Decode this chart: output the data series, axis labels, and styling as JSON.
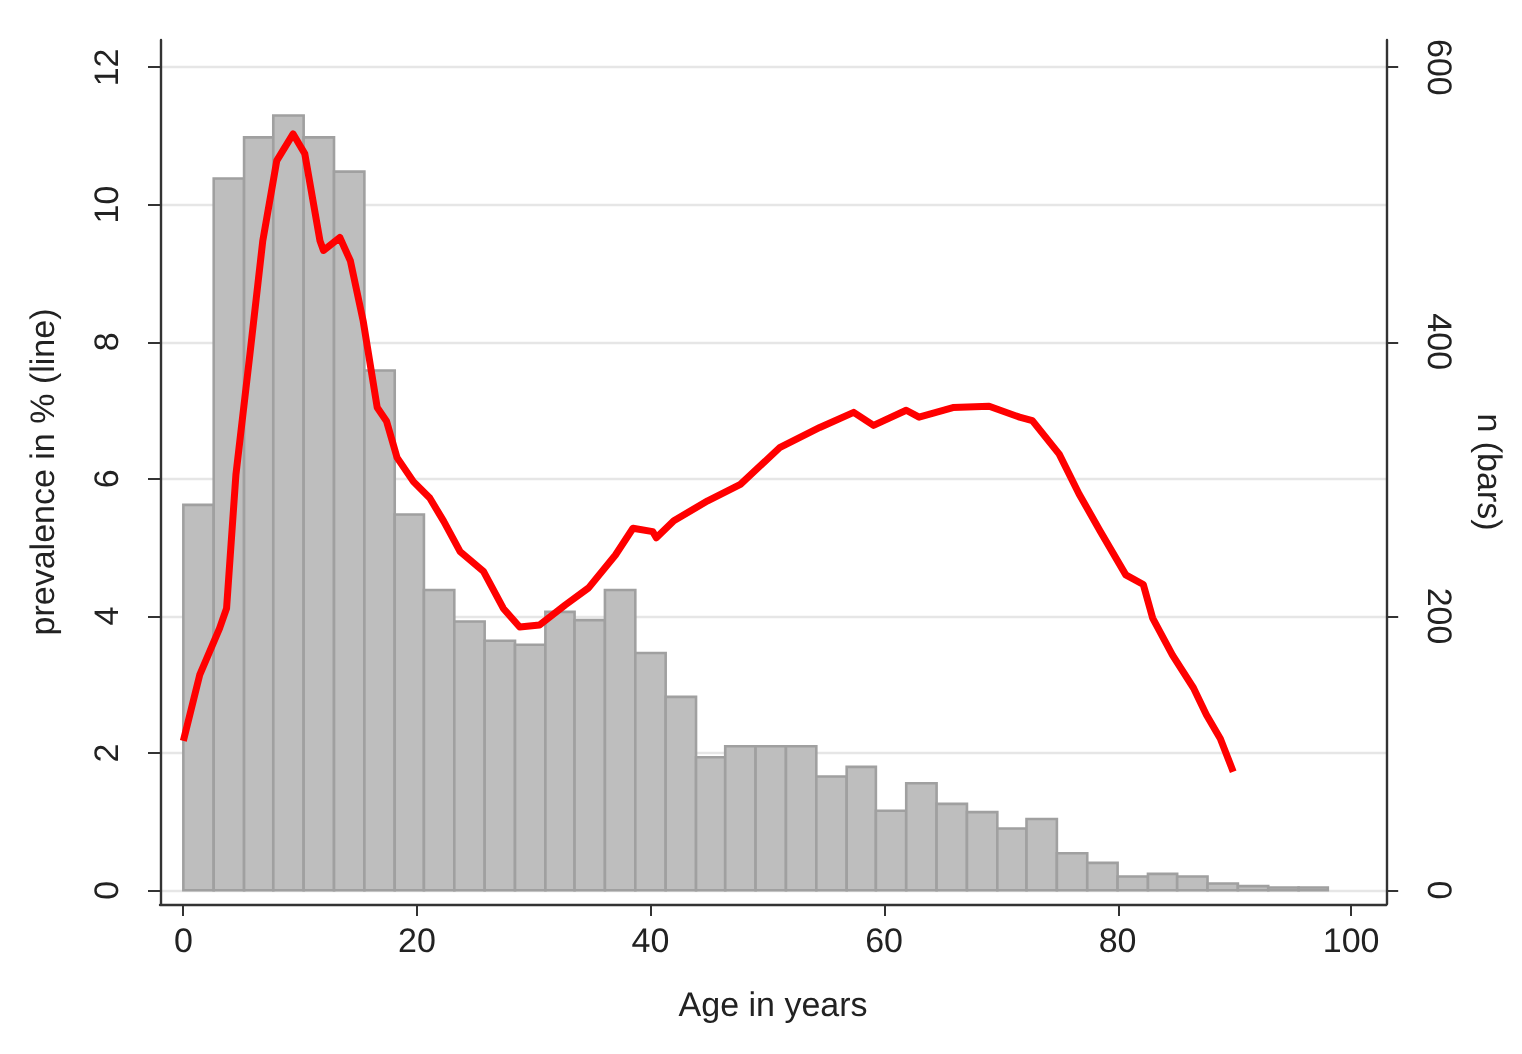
{
  "chart_data": {
    "type": "histogram",
    "xlabel": "Age in years",
    "ylabel": "prevalence in % (line)",
    "y2label": "n (bars)",
    "bins": [
      0,
      2.6,
      5.2,
      7.7,
      10.3,
      12.9,
      15.5,
      18.1,
      20.6,
      23.2,
      25.8,
      28.4,
      31.0,
      33.5,
      36.1,
      38.7,
      41.3,
      43.9,
      46.4,
      49.0,
      51.6,
      54.2,
      56.8,
      59.3,
      61.9,
      64.5,
      67.1,
      69.7,
      72.2,
      74.8,
      77.4,
      80.0,
      82.6,
      85.1,
      87.7,
      90.3,
      92.9,
      95.5,
      98.0
    ],
    "series": [
      {
        "axis": "y2",
        "color": "#bebebe",
        "values": [
          281,
          519,
          549,
          565,
          549,
          524,
          379,
          274,
          219,
          196,
          182,
          179,
          203,
          197,
          219,
          173,
          141,
          97,
          105,
          105,
          105,
          83,
          90,
          58,
          78,
          63,
          57,
          45,
          52,
          27,
          20,
          10,
          12,
          10,
          5,
          3,
          2,
          2
        ]
      },
      {
        "type": "line",
        "color": "#ff0000",
        "x": [
          0,
          1.4,
          3.1,
          3.7,
          4.5,
          5.7,
          6.8,
          8.0,
          9.4,
          10.4,
          11.7,
          12.0,
          13.4,
          14.3,
          15.4,
          16.6,
          17.4,
          18.3,
          19.7,
          21.1,
          22.3,
          23.7,
          25.7,
          27.4,
          28.8,
          30.5,
          32.7,
          34.7,
          37.0,
          38.5,
          40.2,
          40.5,
          42.0,
          44.9,
          47.7,
          51.1,
          54.5,
          57.4,
          59.1,
          61.9,
          63.0,
          65.9,
          69.0,
          71.6,
          72.7,
          75.0,
          76.7,
          78.5,
          80.7,
          82.2,
          83.0,
          84.7,
          86.5,
          87.6,
          88.8,
          89.9
        ],
        "values": [
          2.18,
          3.14,
          3.82,
          4.11,
          6.06,
          7.82,
          9.47,
          10.64,
          11.03,
          10.74,
          9.47,
          9.33,
          9.52,
          9.18,
          8.3,
          7.04,
          6.84,
          6.31,
          5.96,
          5.72,
          5.38,
          4.94,
          4.65,
          4.11,
          3.84,
          3.87,
          4.16,
          4.41,
          4.89,
          5.28,
          5.23,
          5.14,
          5.39,
          5.68,
          5.92,
          6.46,
          6.75,
          6.97,
          6.78,
          7.0,
          6.9,
          7.04,
          7.06,
          6.9,
          6.85,
          6.36,
          5.78,
          5.24,
          4.6,
          4.46,
          3.97,
          3.43,
          2.95,
          2.56,
          2.21,
          1.73
        ]
      }
    ],
    "xlim": [
      -2,
      103
    ],
    "xticks": [
      0,
      20,
      40,
      60,
      80,
      100
    ],
    "ylim": [
      -0.2,
      12.4
    ],
    "yticks": [
      0,
      2,
      4,
      6,
      8,
      10,
      12
    ],
    "y2lim": [
      -10,
      620
    ],
    "y2ticks": [
      0,
      200,
      400,
      600
    ],
    "grid": "y"
  }
}
